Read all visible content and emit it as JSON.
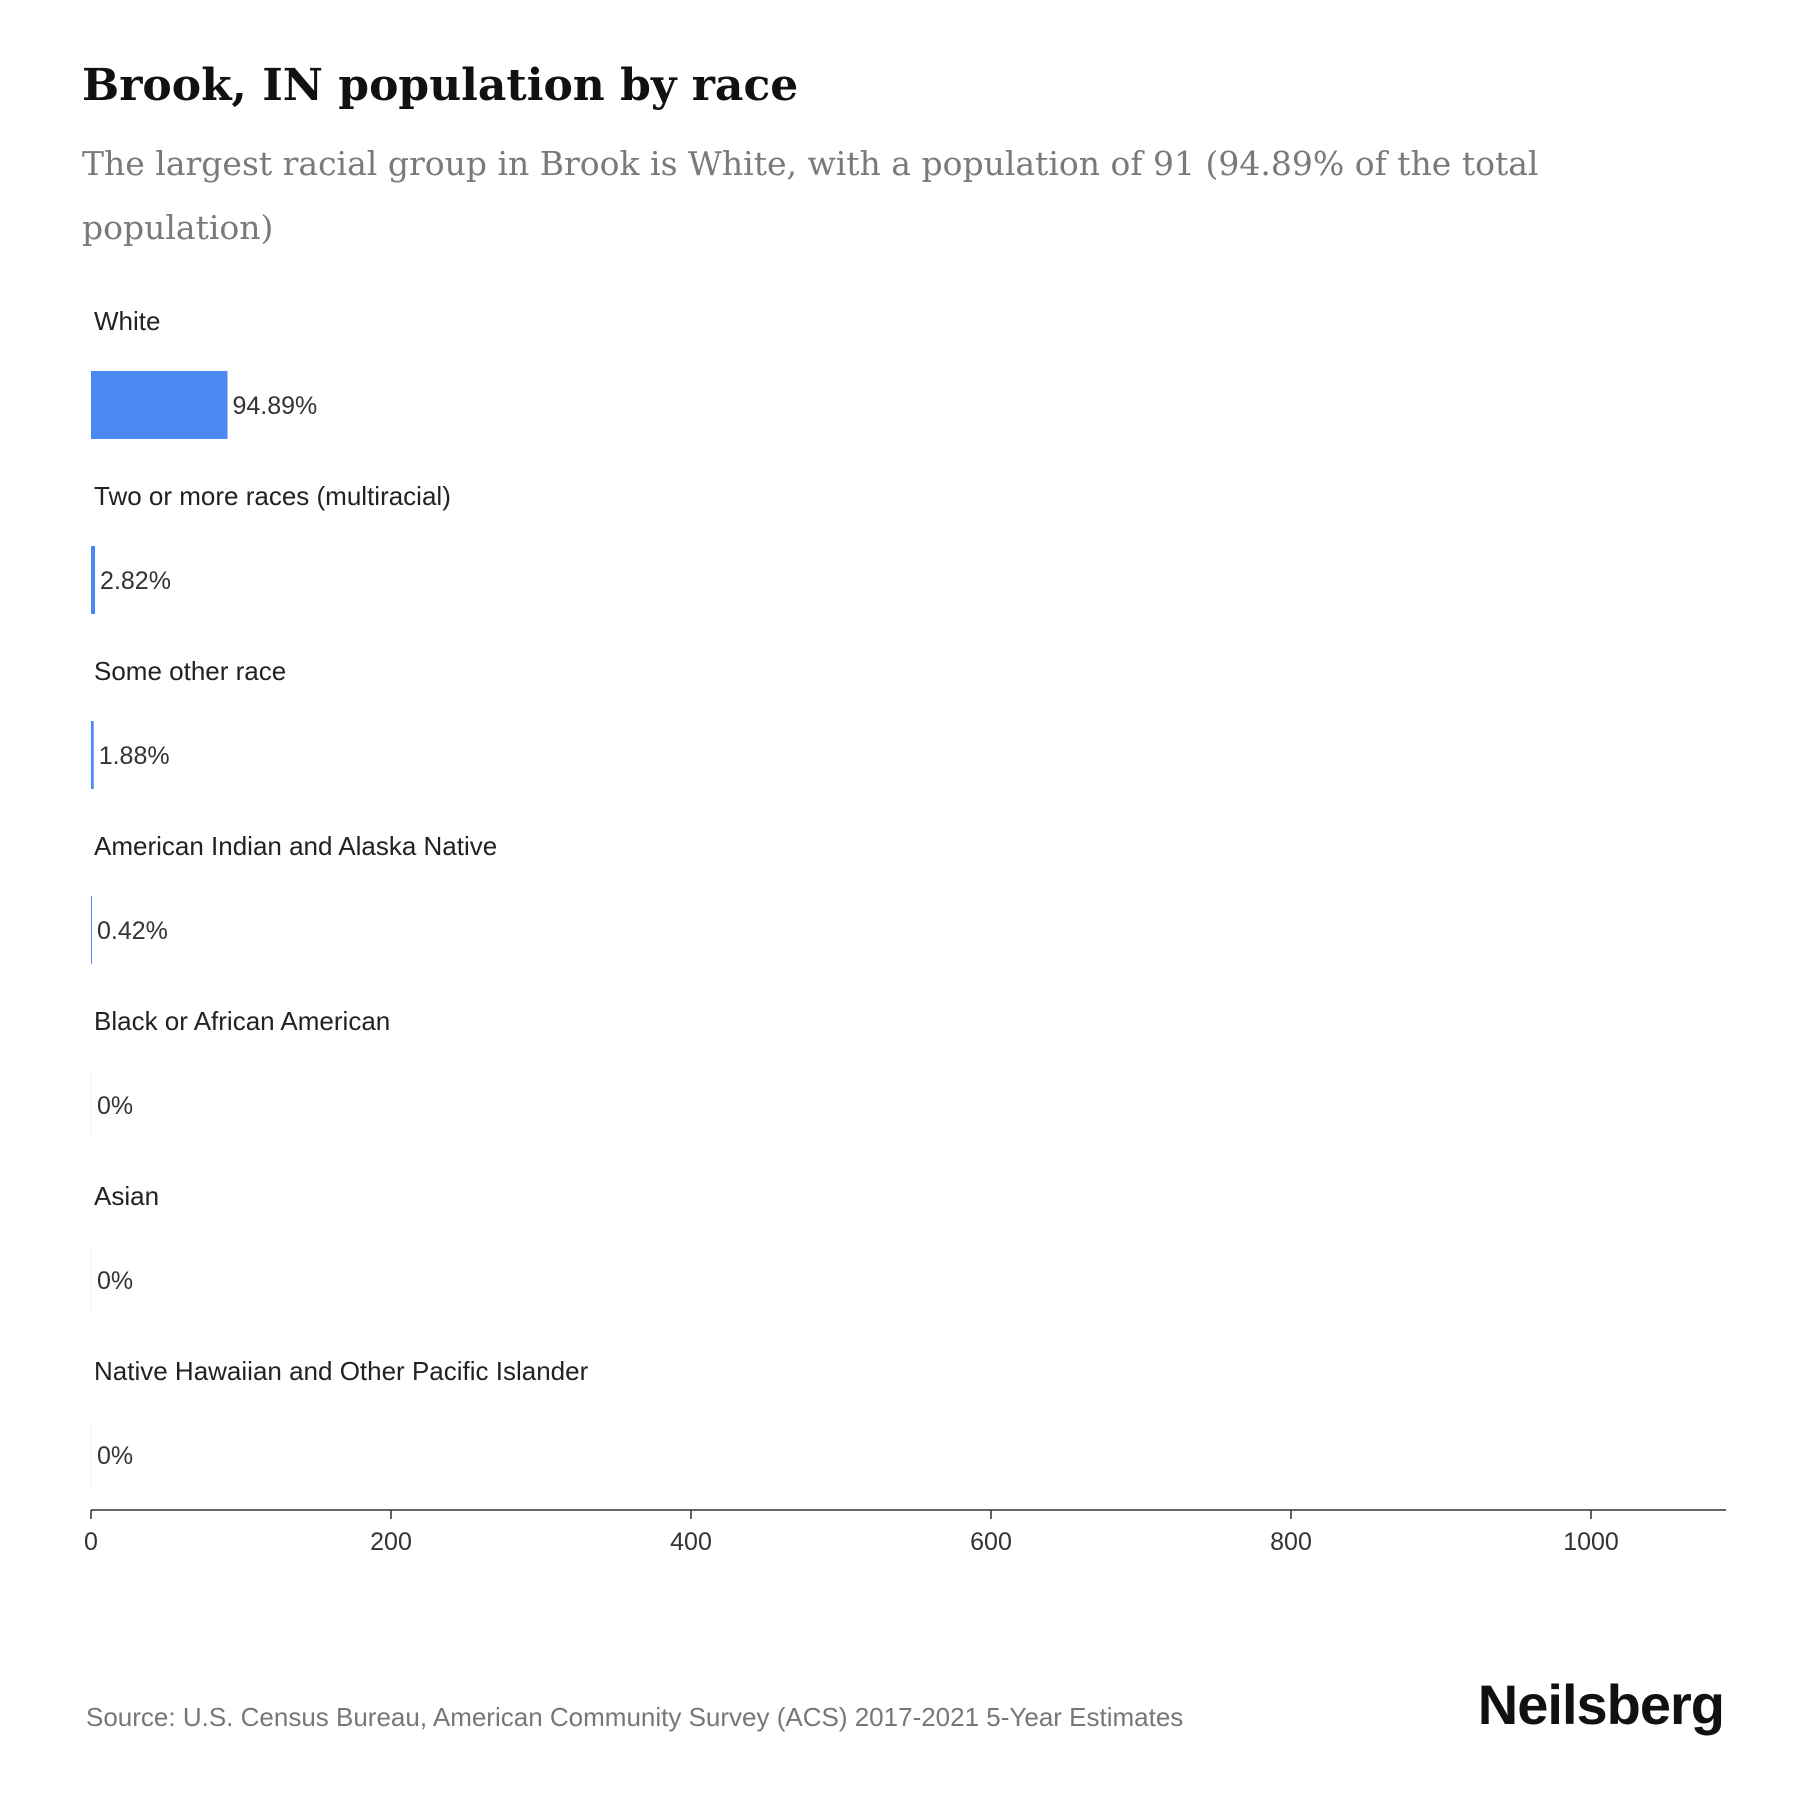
{
  "header": {
    "title": "Brook, IN population by race",
    "subtitle": "The largest racial group in Brook is White, with a population of 91 (94.89% of the total population)"
  },
  "footer": {
    "source": "Source: U.S. Census Bureau, American Community Survey (ACS) 2017-2021 5-Year Estimates",
    "brand": "Neilsberg"
  },
  "colors": {
    "bar": "#4a89f3",
    "axis": "#333333"
  },
  "chart_data": {
    "type": "bar",
    "orientation": "horizontal",
    "categories": [
      "White",
      "Two or more races (multiracial)",
      "Some other race",
      "American Indian and Alaska Native",
      "Black or African American",
      "Asian",
      "Native Hawaiian and Other Pacific Islander"
    ],
    "values": [
      91,
      2.7,
      1.8,
      0.4,
      0,
      0,
      0
    ],
    "data_labels": [
      "94.89%",
      "2.82%",
      "1.88%",
      "0.42%",
      "0%",
      "0%",
      "0%"
    ],
    "xlim": [
      0,
      1090
    ],
    "xticks": [
      0,
      200,
      400,
      600,
      800,
      1000
    ],
    "xtick_labels": [
      "0",
      "200",
      "400",
      "600",
      "800",
      "1000"
    ],
    "grid": false,
    "legend": "none"
  }
}
